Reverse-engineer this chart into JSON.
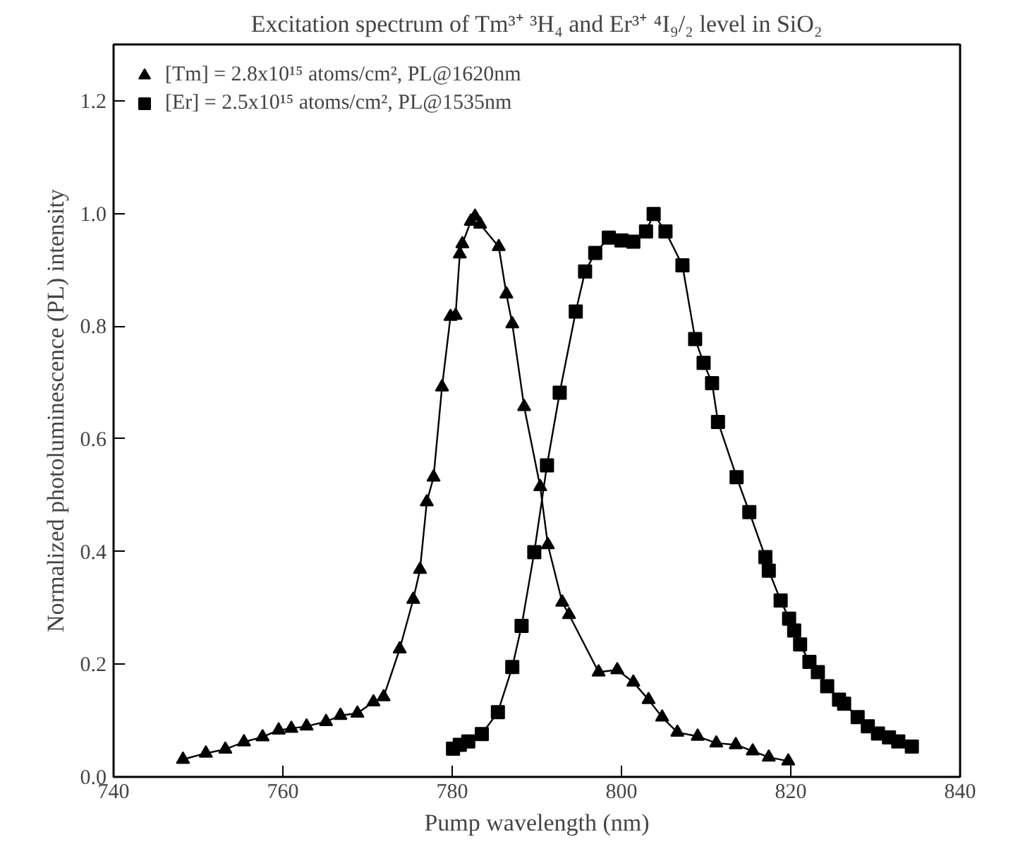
{
  "chart_data": {
    "type": "line",
    "title": "Excitation spectrum of Tm³⁺ ³H₄ and Er³⁺ ⁴I₉/₂ level in SiO₂",
    "xlabel": "Pump wavelength (nm)",
    "ylabel": "Normalized photoluminescence (PL) intensity",
    "xlim": [
      740,
      840
    ],
    "xticks": [
      740,
      760,
      780,
      800,
      820,
      840
    ],
    "ylim": [
      0,
      1.3
    ],
    "yticks": [
      {
        "value": 0,
        "label": "0.0"
      },
      {
        "value": 0.2,
        "label": "0.2"
      },
      {
        "value": 0.4,
        "label": "0.4"
      },
      {
        "value": 0.6,
        "label": "0.6"
      },
      {
        "value": 0.8,
        "label": "0.8"
      },
      {
        "value": 1.0,
        "label": "1.0"
      },
      {
        "value": 1.2,
        "label": "1.2"
      }
    ],
    "grid": false,
    "legend": "top left",
    "line_style": "solid",
    "series": [
      {
        "name": "[Tm] = 2.8x10¹⁵ atoms/cm², PL@1620nm",
        "color": "#000000",
        "marker": "triangle",
        "x": [
          748.2,
          750.9,
          753.2,
          755.4,
          757.6,
          759.5,
          761.0,
          762.8,
          765.1,
          766.8,
          768.8,
          770.7,
          771.9,
          773.8,
          775.4,
          776.2,
          777.0,
          777.8,
          778.8,
          779.8,
          780.4,
          780.9,
          781.2,
          782.2,
          782.7,
          783.3,
          785.5,
          786.4,
          787.1,
          788.5,
          790.4,
          791.3,
          793.0,
          793.8,
          797.3,
          799.5,
          801.4,
          803.2,
          804.8,
          806.6,
          809.0,
          811.2,
          813.5,
          815.5,
          817.4,
          819.7
        ],
        "values": [
          0.031,
          0.042,
          0.049,
          0.062,
          0.071,
          0.083,
          0.086,
          0.09,
          0.098,
          0.109,
          0.113,
          0.133,
          0.142,
          0.227,
          0.315,
          0.368,
          0.488,
          0.532,
          0.692,
          0.817,
          0.819,
          0.928,
          0.946,
          0.986,
          0.995,
          0.981,
          0.941,
          0.857,
          0.804,
          0.657,
          0.515,
          0.412,
          0.31,
          0.288,
          0.186,
          0.19,
          0.168,
          0.137,
          0.106,
          0.079,
          0.072,
          0.06,
          0.057,
          0.046,
          0.035,
          0.028
        ]
      },
      {
        "name": "[Er] = 2.5x10¹⁵ atoms/cm², PL@1535nm",
        "color": "#000000",
        "marker": "square",
        "x": [
          780.1,
          780.9,
          781.9,
          783.5,
          785.4,
          787.1,
          788.2,
          789.7,
          791.2,
          792.7,
          794.6,
          795.7,
          796.9,
          798.5,
          800.0,
          801.4,
          802.9,
          803.8,
          805.2,
          807.2,
          808.7,
          809.7,
          810.7,
          811.4,
          813.6,
          815.1,
          817.0,
          817.4,
          818.8,
          819.8,
          820.4,
          821.1,
          822.2,
          823.2,
          824.3,
          825.7,
          826.3,
          827.9,
          829.1,
          830.3,
          831.6,
          832.7,
          834.3
        ],
        "values": [
          0.05,
          0.057,
          0.063,
          0.076,
          0.115,
          0.195,
          0.268,
          0.399,
          0.553,
          0.682,
          0.826,
          0.897,
          0.93,
          0.957,
          0.952,
          0.95,
          0.968,
          0.999,
          0.968,
          0.908,
          0.777,
          0.735,
          0.699,
          0.63,
          0.532,
          0.47,
          0.39,
          0.366,
          0.313,
          0.281,
          0.26,
          0.235,
          0.204,
          0.186,
          0.161,
          0.137,
          0.13,
          0.106,
          0.09,
          0.077,
          0.07,
          0.063,
          0.054
        ]
      }
    ]
  }
}
